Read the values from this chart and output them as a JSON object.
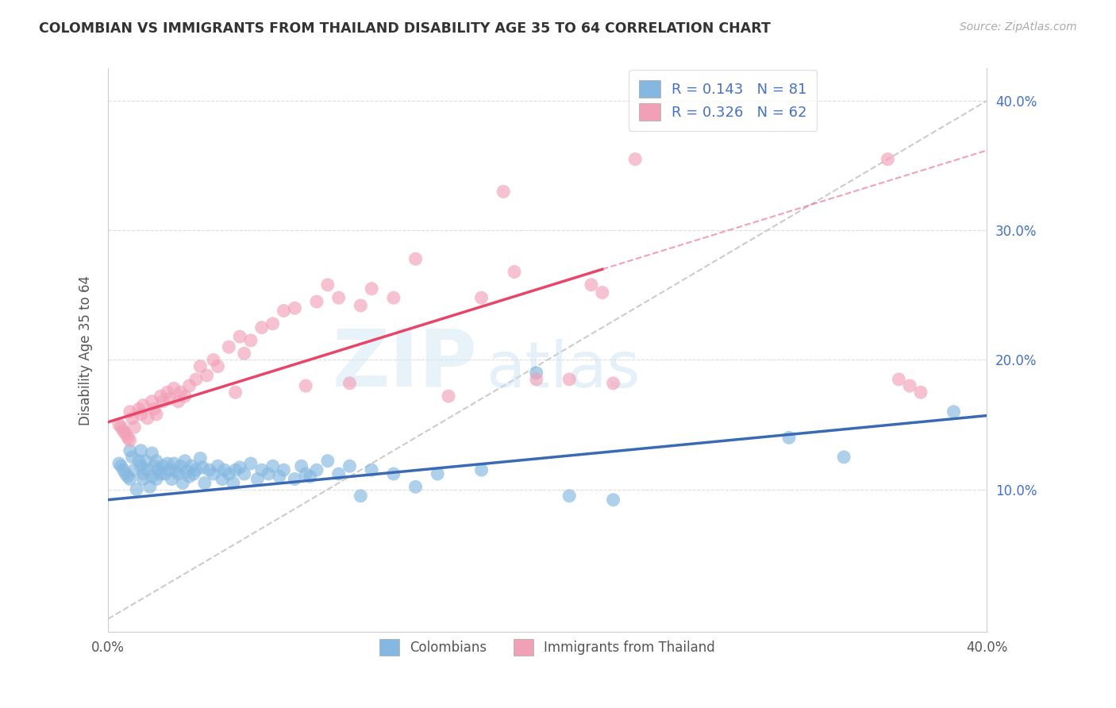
{
  "title": "COLOMBIAN VS IMMIGRANTS FROM THAILAND DISABILITY AGE 35 TO 64 CORRELATION CHART",
  "source": "Source: ZipAtlas.com",
  "ylabel": "Disability Age 35 to 64",
  "xlim": [
    0.0,
    0.4
  ],
  "ylim": [
    -0.01,
    0.425
  ],
  "color_blue": "#85B8E0",
  "color_pink": "#F2A0B8",
  "color_blue_line": "#3A6AB4",
  "color_pink_line": "#E8456A",
  "color_dashed": "#CCCCCC",
  "watermark_zip": "ZIP",
  "watermark_atlas": "atlas",
  "colombians_x": [
    0.005,
    0.006,
    0.007,
    0.008,
    0.009,
    0.01,
    0.01,
    0.011,
    0.012,
    0.013,
    0.014,
    0.015,
    0.015,
    0.016,
    0.016,
    0.017,
    0.018,
    0.019,
    0.02,
    0.02,
    0.021,
    0.022,
    0.022,
    0.023,
    0.024,
    0.025,
    0.026,
    0.027,
    0.028,
    0.029,
    0.03,
    0.031,
    0.032,
    0.033,
    0.034,
    0.035,
    0.036,
    0.037,
    0.038,
    0.039,
    0.04,
    0.042,
    0.043,
    0.044,
    0.046,
    0.048,
    0.05,
    0.052,
    0.053,
    0.055,
    0.057,
    0.058,
    0.06,
    0.062,
    0.065,
    0.068,
    0.07,
    0.073,
    0.075,
    0.078,
    0.08,
    0.085,
    0.088,
    0.09,
    0.092,
    0.095,
    0.1,
    0.105,
    0.11,
    0.115,
    0.12,
    0.13,
    0.14,
    0.15,
    0.17,
    0.195,
    0.21,
    0.23,
    0.31,
    0.335,
    0.385
  ],
  "colombians_y": [
    0.12,
    0.118,
    0.115,
    0.112,
    0.11,
    0.13,
    0.108,
    0.125,
    0.115,
    0.1,
    0.122,
    0.13,
    0.118,
    0.112,
    0.108,
    0.122,
    0.115,
    0.102,
    0.128,
    0.11,
    0.118,
    0.122,
    0.108,
    0.115,
    0.112,
    0.118,
    0.112,
    0.12,
    0.115,
    0.108,
    0.12,
    0.114,
    0.112,
    0.118,
    0.105,
    0.122,
    0.114,
    0.11,
    0.118,
    0.112,
    0.115,
    0.124,
    0.117,
    0.105,
    0.115,
    0.112,
    0.118,
    0.108,
    0.115,
    0.112,
    0.105,
    0.115,
    0.117,
    0.112,
    0.12,
    0.108,
    0.115,
    0.112,
    0.118,
    0.11,
    0.115,
    0.108,
    0.118,
    0.112,
    0.11,
    0.115,
    0.122,
    0.112,
    0.118,
    0.095,
    0.115,
    0.112,
    0.102,
    0.112,
    0.115,
    0.19,
    0.095,
    0.092,
    0.14,
    0.125,
    0.16
  ],
  "thailand_x": [
    0.005,
    0.006,
    0.007,
    0.008,
    0.009,
    0.01,
    0.01,
    0.011,
    0.012,
    0.014,
    0.015,
    0.016,
    0.018,
    0.02,
    0.021,
    0.022,
    0.024,
    0.025,
    0.027,
    0.028,
    0.03,
    0.032,
    0.033,
    0.035,
    0.037,
    0.04,
    0.042,
    0.045,
    0.048,
    0.05,
    0.055,
    0.058,
    0.06,
    0.062,
    0.065,
    0.07,
    0.075,
    0.08,
    0.085,
    0.09,
    0.095,
    0.1,
    0.105,
    0.11,
    0.115,
    0.12,
    0.13,
    0.14,
    0.155,
    0.17,
    0.18,
    0.185,
    0.195,
    0.21,
    0.22,
    0.225,
    0.23,
    0.24,
    0.355,
    0.36,
    0.365,
    0.37
  ],
  "thailand_y": [
    0.15,
    0.148,
    0.145,
    0.143,
    0.14,
    0.16,
    0.138,
    0.155,
    0.148,
    0.162,
    0.158,
    0.165,
    0.155,
    0.168,
    0.162,
    0.158,
    0.172,
    0.168,
    0.175,
    0.17,
    0.178,
    0.168,
    0.175,
    0.172,
    0.18,
    0.185,
    0.195,
    0.188,
    0.2,
    0.195,
    0.21,
    0.175,
    0.218,
    0.205,
    0.215,
    0.225,
    0.228,
    0.238,
    0.24,
    0.18,
    0.245,
    0.258,
    0.248,
    0.182,
    0.242,
    0.255,
    0.248,
    0.278,
    0.172,
    0.248,
    0.33,
    0.268,
    0.185,
    0.185,
    0.258,
    0.252,
    0.182,
    0.355,
    0.355,
    0.185,
    0.18,
    0.175
  ],
  "blue_line_x0": 0.0,
  "blue_line_x1": 0.4,
  "blue_line_y0": 0.092,
  "blue_line_y1": 0.157,
  "pink_line_x0": 0.0,
  "pink_line_x1": 0.225,
  "pink_line_y0": 0.152,
  "pink_line_y1": 0.27,
  "dashed_line_x0": 0.0,
  "dashed_line_x1": 0.4,
  "dashed_line_y0": 0.0,
  "dashed_line_y1": 0.4
}
